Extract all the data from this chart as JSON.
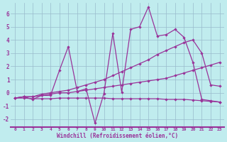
{
  "xlabel": "Windchill (Refroidissement éolien,°C)",
  "bg_color": "#c0ecee",
  "line_color": "#993399",
  "xlim": [
    -0.5,
    23.5
  ],
  "ylim": [
    -2.6,
    6.8
  ],
  "xticks": [
    0,
    1,
    2,
    3,
    4,
    5,
    6,
    7,
    8,
    9,
    10,
    11,
    12,
    13,
    14,
    15,
    16,
    17,
    18,
    19,
    20,
    21,
    22,
    23
  ],
  "yticks": [
    -2,
    -1,
    0,
    1,
    2,
    3,
    4,
    5,
    6
  ],
  "series": [
    {
      "x": [
        0,
        1,
        2,
        3,
        4,
        5,
        6,
        7,
        8,
        9,
        10,
        11,
        12,
        13,
        14,
        15,
        16,
        17,
        18,
        19,
        20,
        21,
        22,
        23
      ],
      "y": [
        -0.4,
        -0.3,
        -0.5,
        -0.2,
        -0.2,
        1.7,
        3.5,
        0.1,
        0.3,
        -2.3,
        -0.05,
        4.5,
        0.05,
        4.8,
        5.0,
        6.5,
        4.3,
        4.4,
        4.8,
        4.2,
        2.3,
        -0.5,
        -0.6,
        -0.7
      ]
    },
    {
      "x": [
        0,
        1,
        2,
        3,
        4,
        5,
        6,
        7,
        8,
        9,
        10,
        11,
        12,
        13,
        14,
        15,
        16,
        17,
        18,
        19,
        20,
        21,
        22,
        23
      ],
      "y": [
        -0.4,
        -0.3,
        -0.3,
        -0.2,
        -0.1,
        0.0,
        0.0,
        0.1,
        0.2,
        0.3,
        0.4,
        0.5,
        0.6,
        0.7,
        0.8,
        0.9,
        1.0,
        1.1,
        1.3,
        1.5,
        1.7,
        1.9,
        2.1,
        2.3
      ]
    },
    {
      "x": [
        0,
        1,
        2,
        3,
        4,
        5,
        6,
        7,
        8,
        9,
        10,
        11,
        12,
        13,
        14,
        15,
        16,
        17,
        18,
        19,
        20,
        21,
        22,
        23
      ],
      "y": [
        -0.4,
        -0.3,
        -0.3,
        -0.1,
        0.0,
        0.1,
        0.2,
        0.4,
        0.6,
        0.8,
        1.0,
        1.3,
        1.6,
        1.9,
        2.2,
        2.5,
        2.9,
        3.2,
        3.5,
        3.8,
        4.0,
        3.0,
        0.6,
        0.5
      ]
    },
    {
      "x": [
        0,
        1,
        2,
        3,
        4,
        5,
        6,
        7,
        8,
        9,
        10,
        11,
        12,
        13,
        14,
        15,
        16,
        17,
        18,
        19,
        20,
        21,
        22,
        23
      ],
      "y": [
        -0.4,
        -0.4,
        -0.45,
        -0.45,
        -0.45,
        -0.4,
        -0.4,
        -0.4,
        -0.4,
        -0.4,
        -0.4,
        -0.45,
        -0.45,
        -0.45,
        -0.45,
        -0.45,
        -0.45,
        -0.5,
        -0.5,
        -0.5,
        -0.55,
        -0.6,
        -0.65,
        -0.7
      ]
    }
  ]
}
